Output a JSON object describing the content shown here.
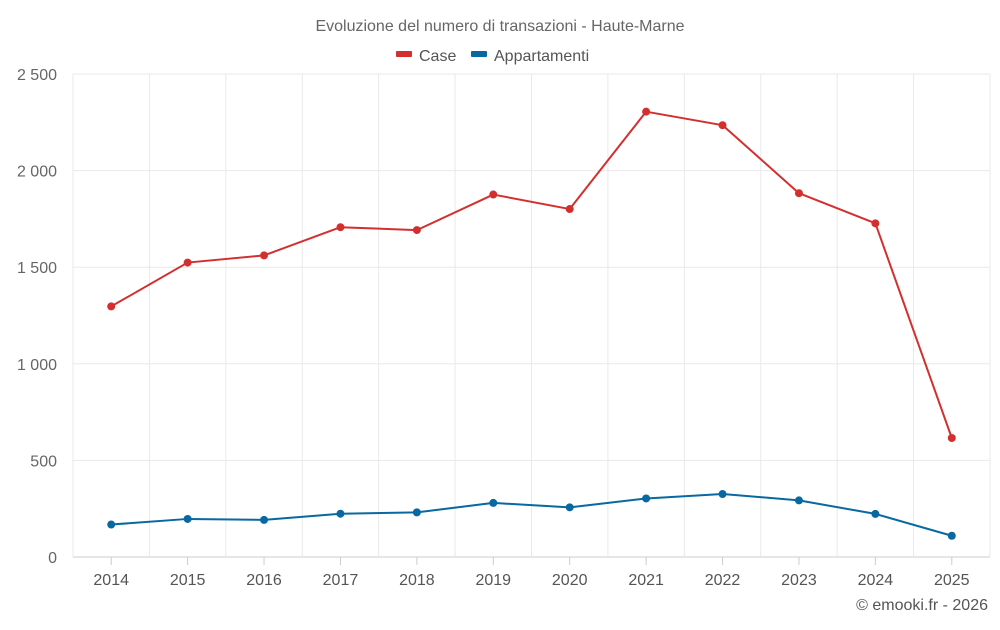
{
  "chart_data": {
    "type": "line",
    "title": "Evoluzione del numero di transazioni - Haute-Marne",
    "categories": [
      "2014",
      "2015",
      "2016",
      "2017",
      "2018",
      "2019",
      "2020",
      "2021",
      "2022",
      "2023",
      "2024",
      "2025"
    ],
    "series": [
      {
        "name": "Case",
        "color": "#d32f2f",
        "values": [
          1297,
          1524,
          1561,
          1707,
          1692,
          1876,
          1801,
          2305,
          2235,
          1883,
          1727,
          616
        ]
      },
      {
        "name": "Appartamenti",
        "color": "#0868a0",
        "values": [
          168,
          197,
          192,
          224,
          231,
          280,
          257,
          303,
          326,
          293,
          223,
          110
        ]
      }
    ],
    "ylim": [
      0,
      2500
    ],
    "yticks": [
      0,
      500,
      1000,
      1500,
      2000,
      2500
    ],
    "ytick_labels": [
      "0",
      "500",
      "1 000",
      "1 500",
      "2 000",
      "2 500"
    ],
    "xlabel": "",
    "ylabel": "",
    "legend": "top-center",
    "grid": true
  },
  "credit": "© emooki.fr - 2026"
}
